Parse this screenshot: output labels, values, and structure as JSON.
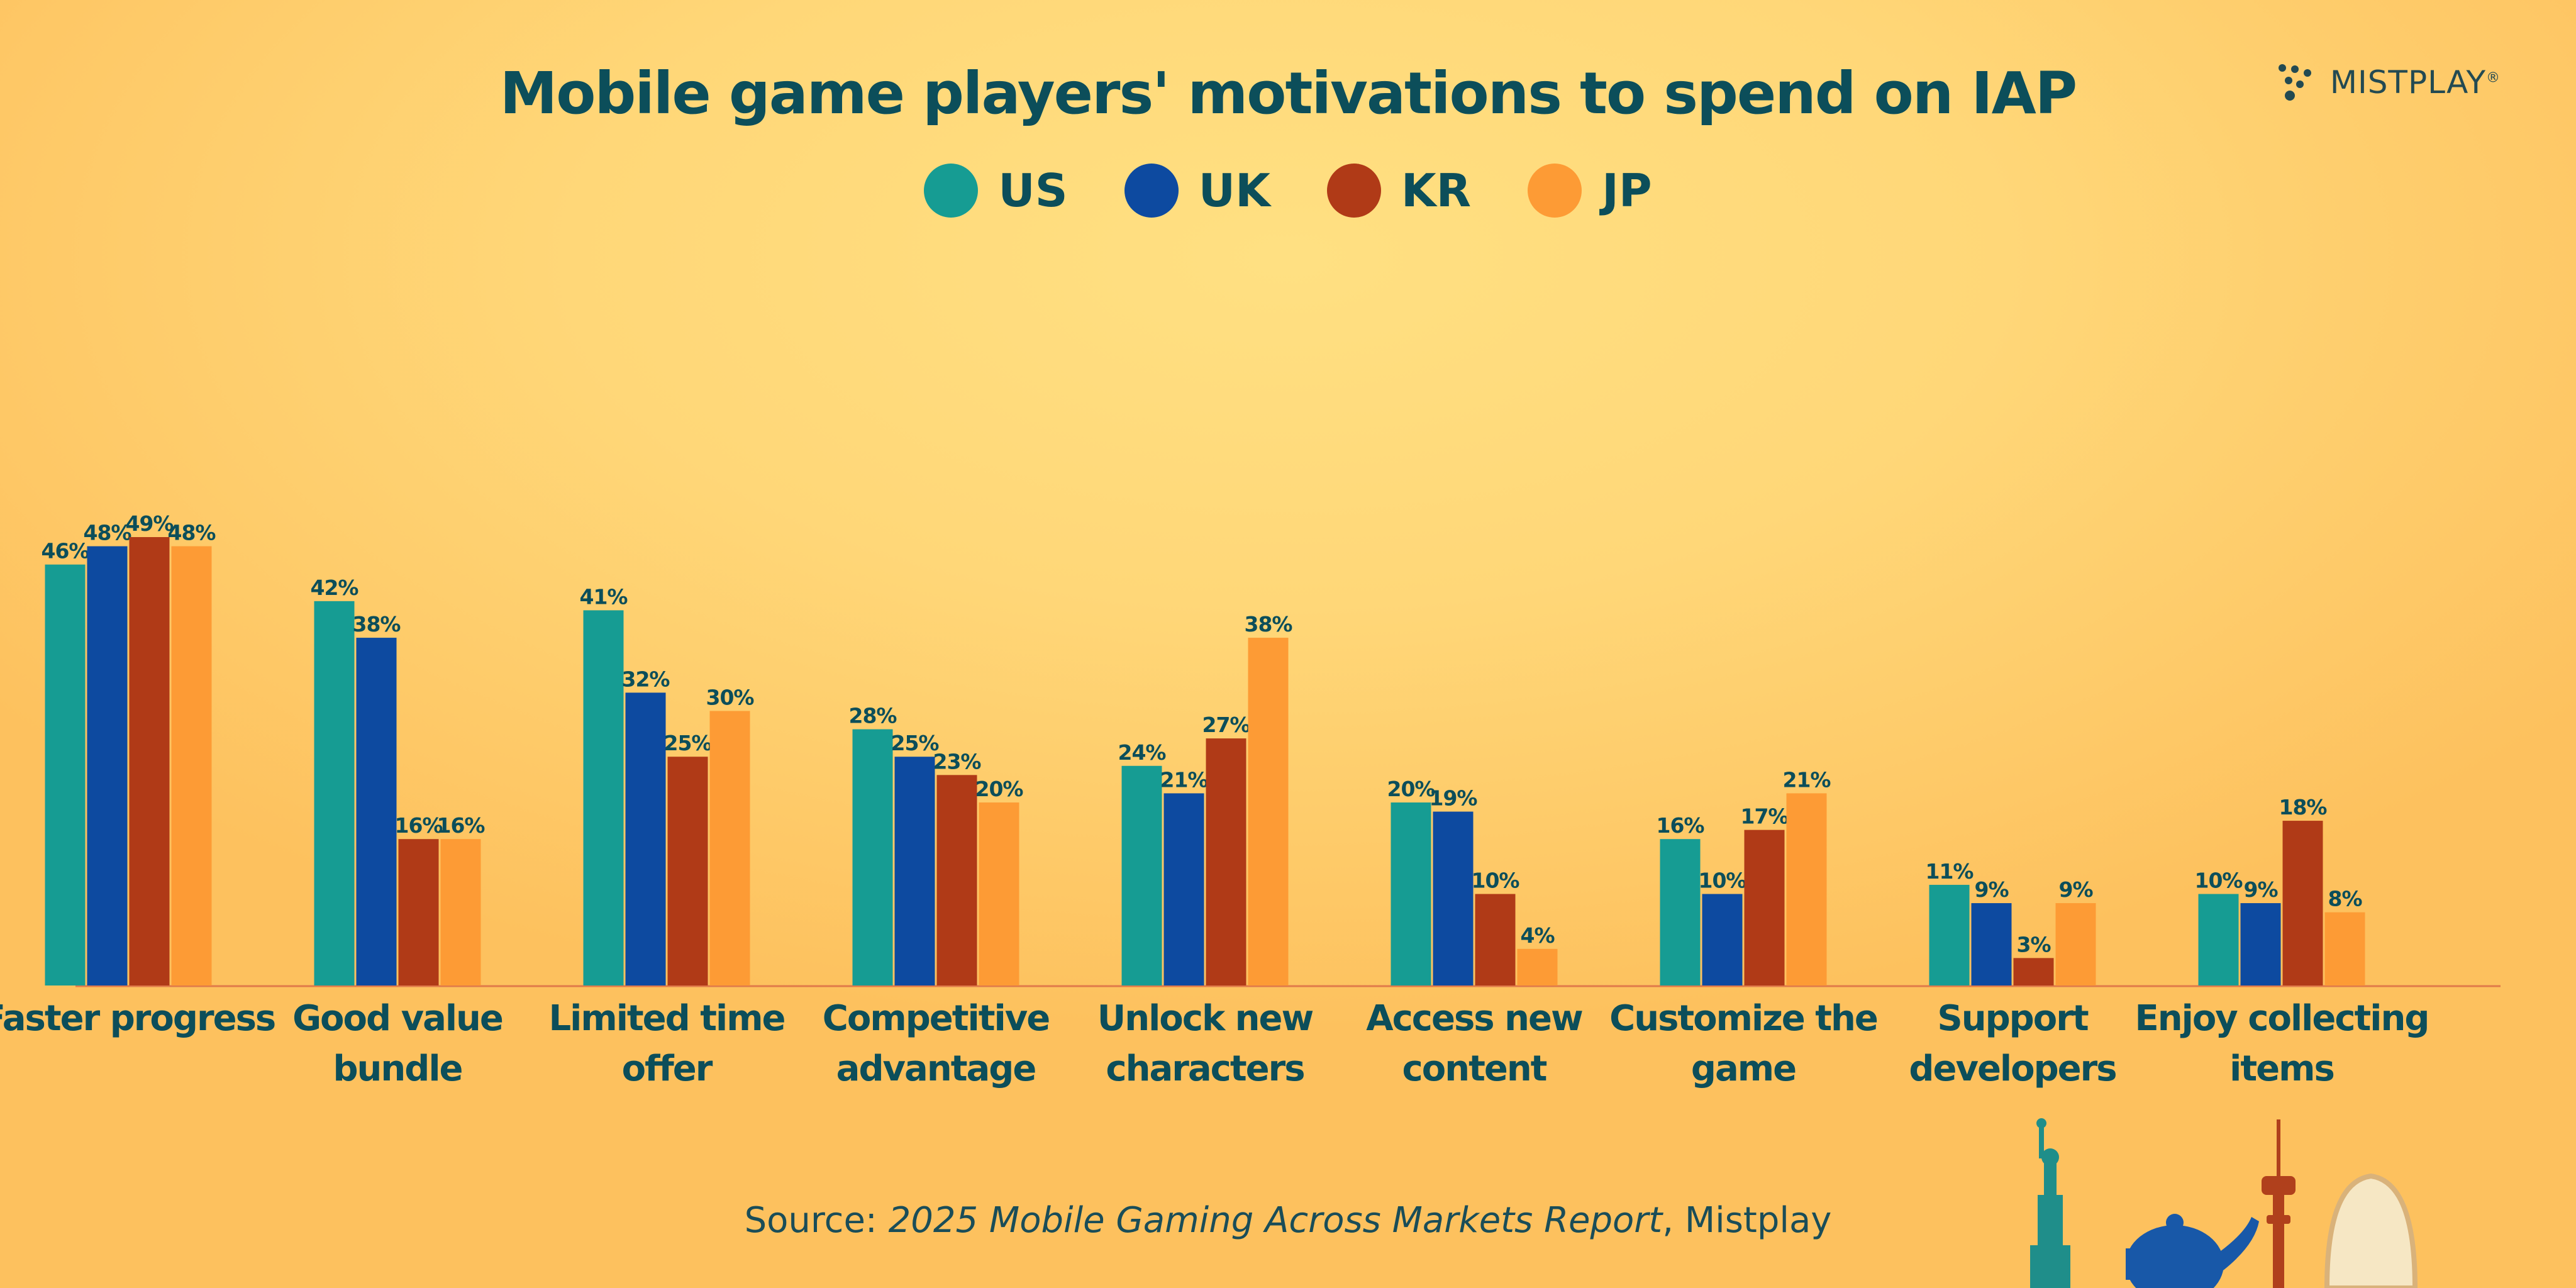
{
  "brand": {
    "name": "MISTPLAY",
    "mark": "®"
  },
  "source": {
    "prefix": "Source: ",
    "report": "2025 Mobile Gaming Across Markets Report",
    "suffix": ", Mistplay"
  },
  "colors": {
    "US": "#169c93",
    "UK": "#0d4aa0",
    "KR": "#b03a17",
    "JP": "#fd9b35"
  },
  "chart_data": {
    "type": "bar",
    "title": "Mobile game players' motivations to spend on IAP",
    "categories": [
      "Faster progress",
      "Good value bundle",
      "Limited time offer",
      "Competitive advantage",
      "Unlock new characters",
      "Access new content",
      "Customize the game",
      "Support developers",
      "Enjoy collecting items"
    ],
    "category_lines": [
      [
        "Faster progress"
      ],
      [
        "Good value",
        "bundle"
      ],
      [
        "Limited time",
        "offer"
      ],
      [
        "Competitive",
        "advantage"
      ],
      [
        "Unlock new",
        "characters"
      ],
      [
        "Access new",
        "content"
      ],
      [
        "Customize the",
        "game"
      ],
      [
        "Support",
        "developers"
      ],
      [
        "Enjoy collecting",
        "items"
      ]
    ],
    "series": [
      {
        "name": "US",
        "color": "#169c93",
        "values": [
          46,
          42,
          41,
          28,
          24,
          20,
          16,
          11,
          10
        ]
      },
      {
        "name": "UK",
        "color": "#0d4aa0",
        "values": [
          48,
          38,
          32,
          25,
          21,
          19,
          10,
          9,
          9
        ]
      },
      {
        "name": "KR",
        "color": "#b03a17",
        "values": [
          49,
          16,
          25,
          23,
          27,
          10,
          17,
          3,
          18
        ]
      },
      {
        "name": "JP",
        "color": "#fd9b35",
        "values": [
          48,
          16,
          30,
          20,
          38,
          4,
          21,
          9,
          8
        ]
      }
    ],
    "value_suffix": "%",
    "xlabel": "",
    "ylabel": "",
    "ylim": [
      0,
      49
    ],
    "grid": false,
    "legend": "top-center"
  }
}
